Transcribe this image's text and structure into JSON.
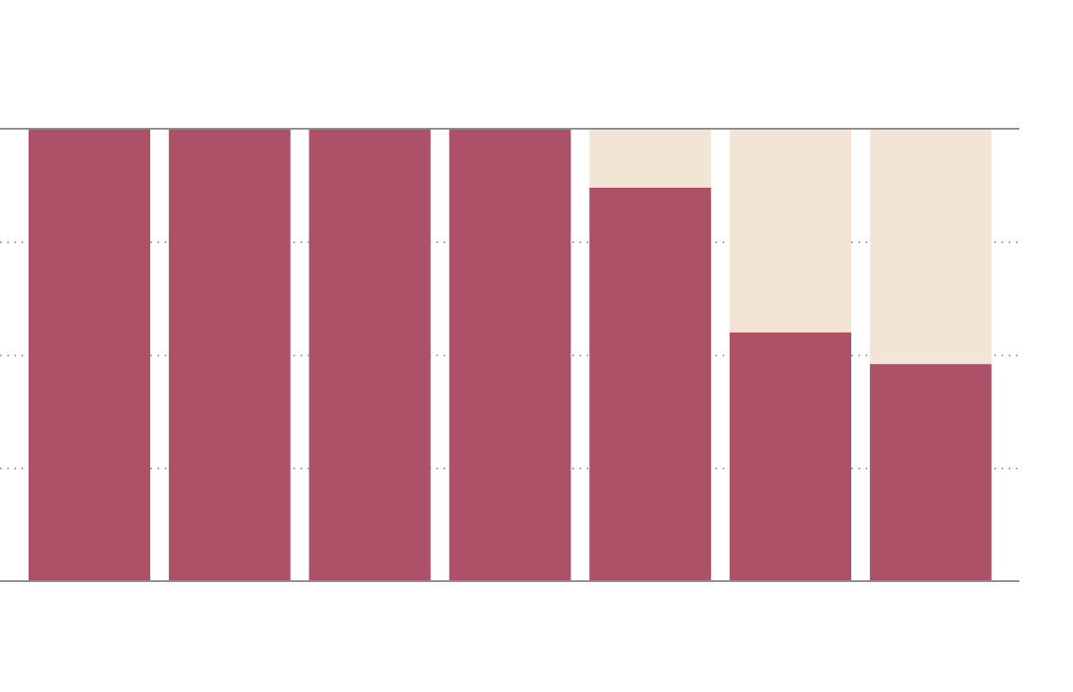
{
  "chart_data": {
    "type": "bar",
    "stacked": true,
    "title": "",
    "xlabel": "",
    "ylabel": "",
    "ylim": [
      0,
      100
    ],
    "grid": true,
    "categories": [
      "",
      "",
      "",
      "",
      "",
      "",
      ""
    ],
    "series": [
      {
        "values": [
          100,
          100,
          100,
          100,
          87,
          55,
          48
        ],
        "color": "#ad5169"
      },
      {
        "values": [
          0,
          0,
          0,
          0,
          13,
          45,
          52
        ],
        "color": "#f3e5d5"
      }
    ],
    "colors": {
      "axis": "#8c8c8c",
      "grid": "#a8a8a8",
      "background": "#ffffff"
    }
  }
}
